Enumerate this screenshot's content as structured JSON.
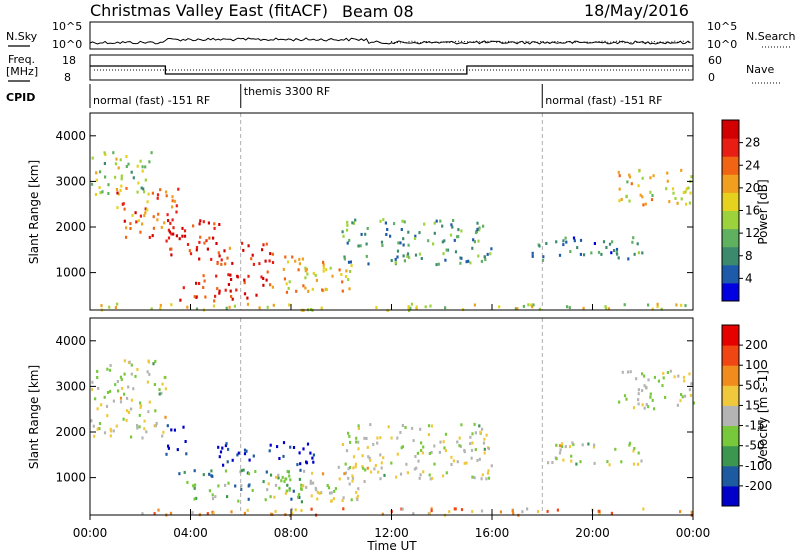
{
  "header": {
    "radar_title": "Christmas Valley East (fitACF)",
    "beam_label": "Beam 08",
    "date": "18/May/2016"
  },
  "aux_panels": {
    "nsky_label": "N.Sky",
    "nsky_ticks": [
      "10^5",
      "10^0"
    ],
    "nsearch_label": "N.Search",
    "nsearch_ticks": [
      "10^5",
      "10^0"
    ],
    "freq_label_1": "Freq.",
    "freq_label_2": "[MHz]",
    "freq_ticks": [
      "18",
      "8"
    ],
    "nave_label": "Nave",
    "nave_ticks": [
      "60",
      "0"
    ],
    "cpid_label": "CPID",
    "cpid_modes": [
      {
        "label": "normal (fast) -151 RF",
        "start_hour": 0,
        "end_hour": 6
      },
      {
        "label": "themis 3300 RF",
        "start_hour": 6,
        "end_hour": 18
      },
      {
        "label": "normal (fast) -151 RF",
        "start_hour": 18,
        "end_hour": 24
      }
    ],
    "freq_steps": [
      {
        "from_hour": 0,
        "to_hour": 3,
        "mhz": 14
      },
      {
        "from_hour": 3,
        "to_hour": 15,
        "mhz": 10
      },
      {
        "from_hour": 15,
        "to_hour": 24,
        "mhz": 14
      }
    ]
  },
  "x_axis": {
    "label": "Time UT",
    "ticks": [
      "00:00",
      "04:00",
      "08:00",
      "12:00",
      "16:00",
      "20:00",
      "00:00"
    ],
    "range_hours": [
      0,
      24
    ]
  },
  "chart_data": [
    {
      "type": "heatmap",
      "name": "power",
      "ylabel": "Slant Range [km]",
      "yticks": [
        1000,
        2000,
        3000,
        4000
      ],
      "ylim": [
        180,
        4500
      ],
      "colorbar_label": "Power [dB]",
      "colorbar_ticks": [
        4,
        8,
        12,
        16,
        20,
        24,
        28
      ],
      "colorbar_colors": [
        "#0000e0",
        "#1e5aaa",
        "#3c8a6e",
        "#5fb05f",
        "#9cd23c",
        "#e6d21e",
        "#f0a01e",
        "#f06414",
        "#e81e14",
        "#d20000"
      ],
      "scatter_regions": [
        {
          "t0": 0.0,
          "t1": 2.5,
          "r0": 2700,
          "r1": 3700,
          "level": 0.45
        },
        {
          "t0": 1.0,
          "t1": 3.5,
          "r0": 1800,
          "r1": 2900,
          "level": 0.75
        },
        {
          "t0": 3.0,
          "t1": 5.5,
          "r0": 1300,
          "r1": 2200,
          "level": 0.9
        },
        {
          "t0": 5.0,
          "t1": 7.5,
          "r0": 1200,
          "r1": 1700,
          "level": 0.85
        },
        {
          "t0": 3.5,
          "t1": 7.0,
          "r0": 400,
          "r1": 1000,
          "level": 0.9
        },
        {
          "t0": 7.0,
          "t1": 10.5,
          "r0": 600,
          "r1": 1400,
          "level": 0.6
        },
        {
          "t0": 10.0,
          "t1": 16.0,
          "r0": 1200,
          "r1": 2200,
          "level": 0.3
        },
        {
          "t0": 17.5,
          "t1": 22.0,
          "r0": 1300,
          "r1": 1800,
          "level": 0.25
        },
        {
          "t0": 21.0,
          "t1": 24.0,
          "r0": 2500,
          "r1": 3300,
          "level": 0.55
        },
        {
          "t0": 0.0,
          "t1": 24.0,
          "r0": 200,
          "r1": 350,
          "level": 0.5
        }
      ]
    },
    {
      "type": "heatmap",
      "name": "velocity",
      "ylabel": "Slant Range [km]",
      "yticks": [
        1000,
        2000,
        3000,
        4000
      ],
      "ylim": [
        180,
        4500
      ],
      "colorbar_label": "Velocity [m s-1]",
      "colorbar_ticks": [
        200,
        100,
        50,
        15,
        -15,
        -50,
        -100,
        -200
      ],
      "colorbar_colors": [
        "#0000c8",
        "#1e5aa0",
        "#3c9650",
        "#78c83c",
        "#b4b4b4",
        "#f0c83c",
        "#f08c1e",
        "#f04614",
        "#e60000"
      ],
      "scatter_regions": [
        {
          "t0": 0.0,
          "t1": 3.0,
          "r0": 1900,
          "r1": 3600,
          "level": 0.5
        },
        {
          "t0": 3.0,
          "t1": 3.8,
          "r0": 1500,
          "r1": 2200,
          "level": 0.05
        },
        {
          "t0": 5.0,
          "t1": 9.0,
          "r0": 1300,
          "r1": 1800,
          "level": 0.02
        },
        {
          "t0": 3.5,
          "t1": 8.5,
          "r0": 500,
          "r1": 1200,
          "level": 0.3
        },
        {
          "t0": 7.0,
          "t1": 11.0,
          "r0": 500,
          "r1": 1300,
          "level": 0.5
        },
        {
          "t0": 10.0,
          "t1": 16.0,
          "r0": 1000,
          "r1": 2200,
          "level": 0.5
        },
        {
          "t0": 18.0,
          "t1": 22.0,
          "r0": 1300,
          "r1": 1800,
          "level": 0.5
        },
        {
          "t0": 21.0,
          "t1": 24.0,
          "r0": 2500,
          "r1": 3400,
          "level": 0.5
        },
        {
          "t0": 2.0,
          "t1": 24.0,
          "r0": 200,
          "r1": 350,
          "level": 0.68
        }
      ]
    }
  ]
}
